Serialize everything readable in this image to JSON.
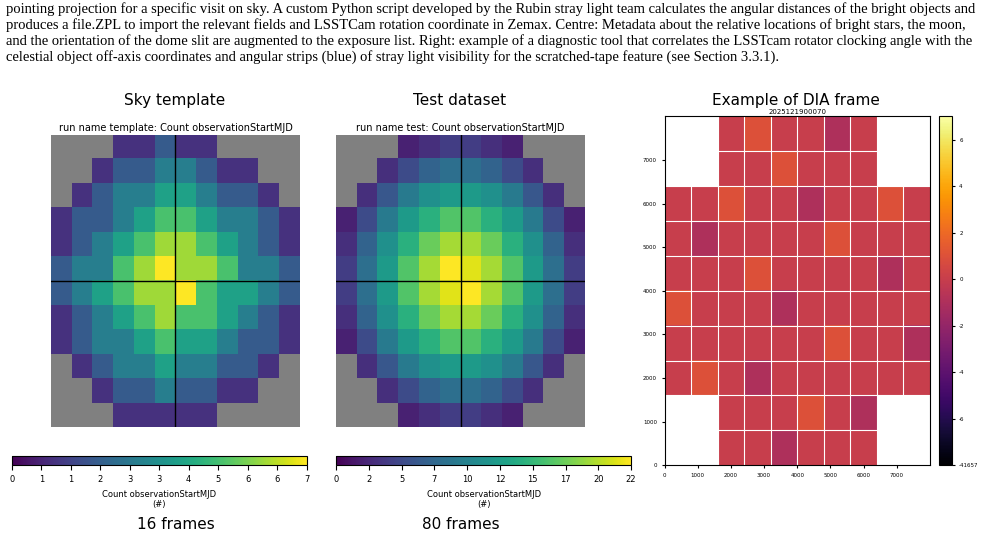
{
  "caption": "pointing projection for a specific visit on sky. A custom Python script developed by the Rubin stray light team calculates the angular distances of the bright objects and produces a file.ZPL to import the relevant fields and LSSTCam rotation coordinate in Zemax. Centre: Metadata about the relative locations of bright stars, the moon, and the orientation of the dome slit are augmented to the exposure list. Right: example of a diagnostic tool that correlates the LSSTcam rotator clocking angle with the celestial object off-axis coordinates and angular strips (blue) of stray light visibility for the scratched-tape feature (see Section 3.3.1).",
  "chart_data": [
    {
      "type": "heatmap",
      "panel_title": "Sky template",
      "title": "run name template: Count observationStartMJD",
      "tick_labels": false,
      "cells": [
        [
          null,
          null,
          null,
          1,
          1,
          2,
          1,
          1,
          null,
          null,
          null,
          null
        ],
        [
          null,
          null,
          1,
          2,
          2,
          3,
          3,
          2,
          1,
          1,
          null,
          null
        ],
        [
          null,
          1,
          2,
          3,
          3,
          4,
          4,
          3,
          2,
          2,
          1,
          null
        ],
        [
          1,
          2,
          2,
          3,
          4,
          5,
          5,
          4,
          3,
          3,
          2,
          1
        ],
        [
          1,
          2,
          3,
          4,
          5,
          6,
          6,
          5,
          4,
          3,
          2,
          1
        ],
        [
          2,
          3,
          3,
          5,
          6,
          7,
          6,
          6,
          5,
          3,
          3,
          2
        ],
        [
          2,
          3,
          4,
          5,
          6,
          6,
          7,
          5,
          4,
          4,
          3,
          2
        ],
        [
          1,
          2,
          3,
          4,
          5,
          6,
          5,
          5,
          4,
          3,
          2,
          1
        ],
        [
          1,
          2,
          3,
          3,
          4,
          5,
          4,
          4,
          3,
          2,
          2,
          1
        ],
        [
          null,
          1,
          2,
          3,
          3,
          4,
          3,
          3,
          2,
          2,
          1,
          null
        ],
        [
          null,
          null,
          1,
          2,
          2,
          3,
          2,
          2,
          1,
          1,
          null,
          null
        ],
        [
          null,
          null,
          null,
          1,
          1,
          1,
          1,
          1,
          null,
          null,
          null,
          null
        ]
      ],
      "colorbar": {
        "label": "Count observationStartMJD\n(#)",
        "range": [
          0,
          7
        ],
        "ticks": [
          {
            "value": 0,
            "label": "0"
          },
          {
            "value": 0.7,
            "label": "1"
          },
          {
            "value": 1.4,
            "label": "1"
          },
          {
            "value": 2.1,
            "label": "2"
          },
          {
            "value": 2.8,
            "label": "3"
          },
          {
            "value": 3.5,
            "label": "3"
          },
          {
            "value": 4.2,
            "label": "4"
          },
          {
            "value": 4.9,
            "label": "5"
          },
          {
            "value": 5.6,
            "label": "6"
          },
          {
            "value": 6.3,
            "label": "6"
          },
          {
            "value": 7,
            "label": "7"
          }
        ]
      },
      "footer": "16 frames"
    },
    {
      "type": "heatmap",
      "panel_title": "Test dataset",
      "title": "run name test: Count observationStartMJD",
      "tick_labels": false,
      "cells": [
        [
          null,
          null,
          null,
          2,
          3,
          4,
          4,
          3,
          2,
          null,
          null,
          null
        ],
        [
          null,
          null,
          3,
          5,
          7,
          8,
          8,
          7,
          5,
          3,
          null,
          null
        ],
        [
          null,
          3,
          6,
          9,
          11,
          12,
          12,
          11,
          9,
          6,
          3,
          null
        ],
        [
          2,
          5,
          9,
          12,
          14,
          16,
          16,
          14,
          12,
          9,
          5,
          2
        ],
        [
          3,
          7,
          11,
          14,
          17,
          19,
          19,
          17,
          14,
          11,
          7,
          3
        ],
        [
          4,
          8,
          12,
          16,
          19,
          22,
          21,
          19,
          16,
          12,
          8,
          4
        ],
        [
          4,
          8,
          12,
          16,
          19,
          21,
          22,
          19,
          16,
          12,
          8,
          4
        ],
        [
          3,
          7,
          11,
          14,
          17,
          19,
          19,
          17,
          14,
          11,
          7,
          3
        ],
        [
          2,
          5,
          9,
          12,
          14,
          16,
          16,
          14,
          12,
          9,
          5,
          2
        ],
        [
          null,
          3,
          6,
          9,
          11,
          12,
          12,
          11,
          9,
          6,
          3,
          null
        ],
        [
          null,
          null,
          3,
          5,
          7,
          8,
          8,
          7,
          5,
          3,
          null,
          null
        ],
        [
          null,
          null,
          null,
          2,
          3,
          4,
          4,
          3,
          2,
          null,
          null,
          null
        ]
      ],
      "colorbar": {
        "label": "Count observationStartMJD\n(#)",
        "range": [
          0,
          22
        ],
        "ticks": [
          {
            "value": 0,
            "label": "0"
          },
          {
            "value": 2.44,
            "label": "2"
          },
          {
            "value": 4.89,
            "label": "5"
          },
          {
            "value": 7.33,
            "label": "7"
          },
          {
            "value": 9.78,
            "label": "10"
          },
          {
            "value": 12.22,
            "label": "12"
          },
          {
            "value": 14.67,
            "label": "15"
          },
          {
            "value": 17.11,
            "label": "17"
          },
          {
            "value": 19.56,
            "label": "20"
          },
          {
            "value": 22,
            "label": "22"
          }
        ]
      },
      "footer": "80 frames"
    },
    {
      "type": "image",
      "panel_title": "Example of DIA frame",
      "title": "2025121900070",
      "xlim": [
        0,
        8000
      ],
      "ylim": [
        0,
        8000
      ],
      "xticks": [
        0,
        1000,
        2000,
        3000,
        4000,
        5000,
        6000,
        7000
      ],
      "yticks": [
        0,
        1000,
        2000,
        3000,
        4000,
        5000,
        6000,
        7000
      ],
      "cells": [
        [
          null,
          null,
          0,
          1,
          0,
          0,
          -1,
          0,
          null,
          null
        ],
        [
          null,
          null,
          0,
          0,
          1,
          0,
          0,
          0,
          null,
          null
        ],
        [
          0,
          0,
          1,
          0,
          0,
          -1,
          0,
          0,
          1,
          0
        ],
        [
          0,
          -1,
          0,
          0,
          0,
          0,
          1,
          0,
          0,
          0
        ],
        [
          0,
          0,
          0,
          1,
          0,
          0,
          0,
          0,
          -1,
          0
        ],
        [
          1,
          0,
          0,
          0,
          -1,
          0,
          0,
          0,
          0,
          0
        ],
        [
          0,
          0,
          0,
          0,
          0,
          0,
          1,
          0,
          0,
          -1
        ],
        [
          0,
          1,
          0,
          -1,
          0,
          0,
          0,
          0,
          0,
          0
        ],
        [
          null,
          null,
          0,
          0,
          0,
          1,
          0,
          -1,
          null,
          null
        ],
        [
          null,
          null,
          0,
          0,
          -1,
          0,
          0,
          0,
          null,
          null
        ]
      ],
      "colorbar": {
        "range": [
          -8,
          7
        ],
        "ticks": [
          6,
          4,
          2,
          0,
          -2,
          -4,
          -6,
          {
            "value": -8,
            "label": "-41657"
          }
        ]
      }
    }
  ]
}
